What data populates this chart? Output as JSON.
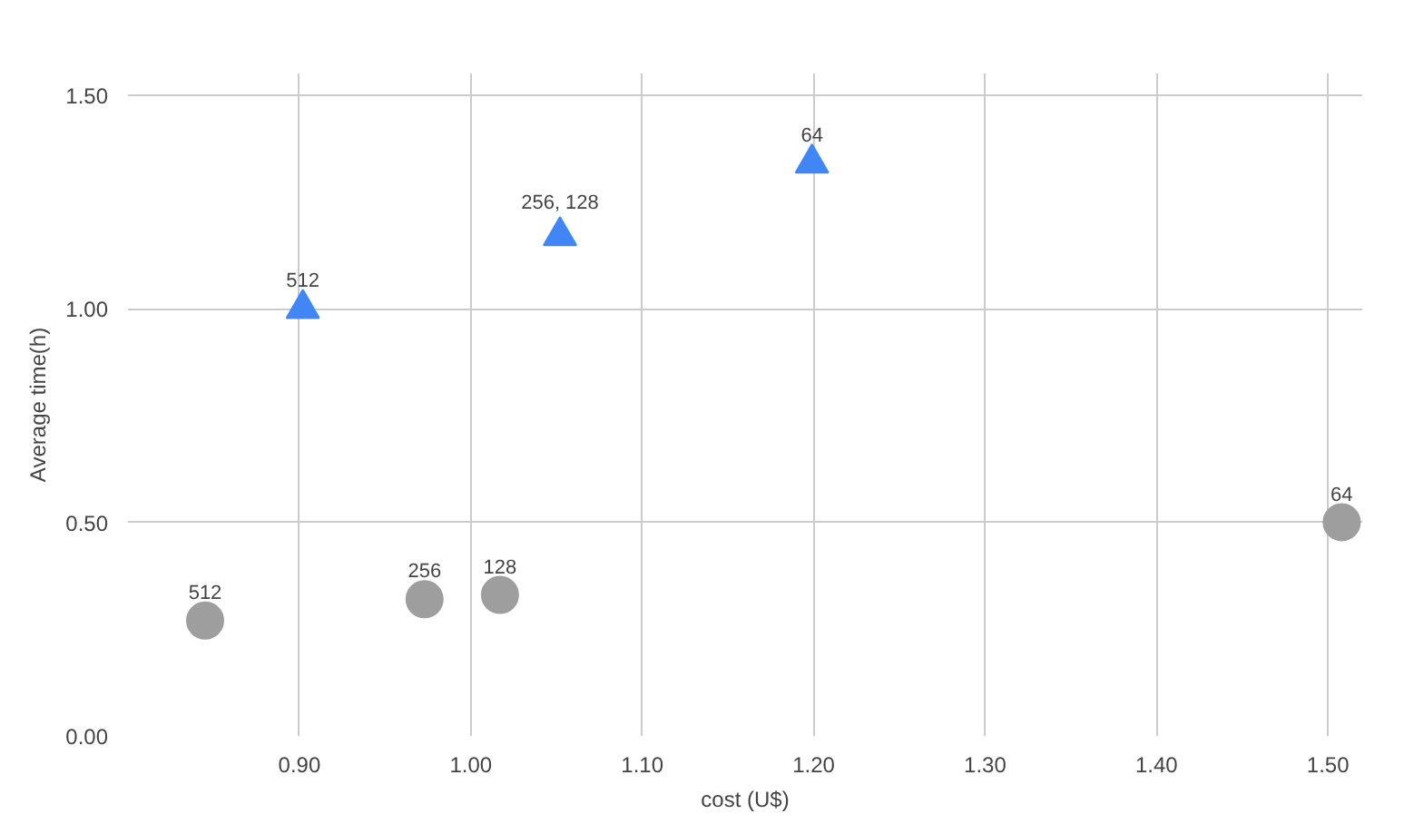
{
  "chart_data": {
    "type": "scatter",
    "xlabel": "cost (U$)",
    "ylabel": "Average time(h)",
    "xlim": [
      0.8,
      1.52
    ],
    "ylim": [
      0,
      1.55
    ],
    "xticks": [
      {
        "value": 0.9,
        "label": "0.90"
      },
      {
        "value": 1.0,
        "label": "1.00"
      },
      {
        "value": 1.1,
        "label": "1.10"
      },
      {
        "value": 1.2,
        "label": "1.20"
      },
      {
        "value": 1.3,
        "label": "1.30"
      },
      {
        "value": 1.4,
        "label": "1.40"
      },
      {
        "value": 1.5,
        "label": "1.50"
      }
    ],
    "yticks": [
      {
        "value": 0,
        "label": "0.00"
      },
      {
        "value": 0.5,
        "label": "0.50"
      },
      {
        "value": 1.0,
        "label": "1.00"
      },
      {
        "value": 1.5,
        "label": "1.50"
      }
    ],
    "grid": true,
    "series": [
      {
        "color": "#9e9e9e",
        "marker": "circle",
        "x": [
          0.845,
          0.973,
          1.017,
          1.508
        ],
        "values": [
          0.27,
          0.32,
          0.33,
          0.5
        ]
      },
      {
        "color": "#4285f4",
        "marker": "triangle",
        "x": [
          0.902,
          1.052,
          1.199
        ],
        "values": [
          1.0,
          1.17,
          1.34
        ]
      }
    ],
    "annotations": [
      {
        "text": "512",
        "x": 0.845,
        "y": 0.27
      },
      {
        "text": "256",
        "x": 0.973,
        "y": 0.32
      },
      {
        "text": "128",
        "x": 1.017,
        "y": 0.33
      },
      {
        "text": "64",
        "x": 1.508,
        "y": 0.5
      },
      {
        "text": "512",
        "x": 0.902,
        "y": 1.0
      },
      {
        "text": "256, 128",
        "x": 1.052,
        "y": 1.17
      },
      {
        "text": "64",
        "x": 1.199,
        "y": 1.34
      }
    ]
  }
}
